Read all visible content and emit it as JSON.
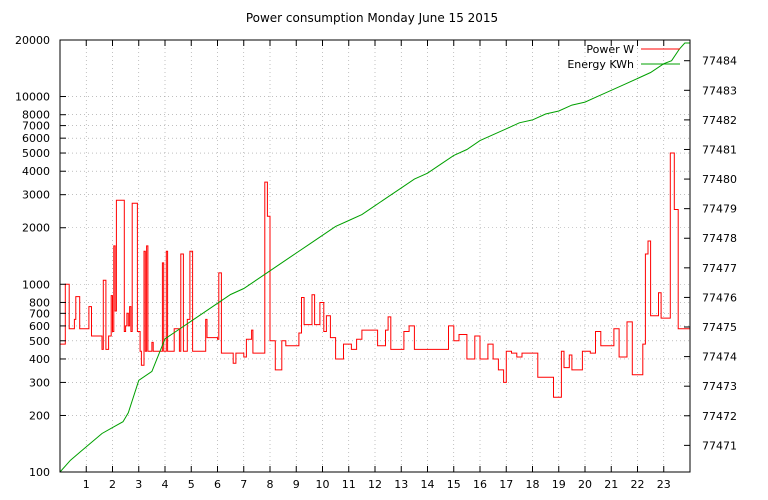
{
  "chart_data": {
    "type": "line",
    "title": "Power consumption Monday June 15 2015",
    "xlabel": "",
    "ylabel": "",
    "xlim": [
      0,
      24
    ],
    "x_ticks": [
      1,
      2,
      3,
      4,
      5,
      6,
      7,
      8,
      9,
      10,
      11,
      12,
      13,
      14,
      15,
      16,
      17,
      18,
      19,
      20,
      21,
      22,
      23
    ],
    "y_left": {
      "scale": "log",
      "range": [
        100,
        20000
      ],
      "ticks": [
        100,
        200,
        300,
        400,
        500,
        600,
        700,
        800,
        1000,
        2000,
        3000,
        4000,
        5000,
        6000,
        7000,
        8000,
        10000,
        20000
      ]
    },
    "y_right": {
      "scale": "linear",
      "range": [
        77470.1,
        77484.7
      ],
      "ticks": [
        77471,
        77472,
        77473,
        77474,
        77475,
        77476,
        77477,
        77478,
        77479,
        77480,
        77481,
        77482,
        77483,
        77484
      ]
    },
    "grid": true,
    "legend_position": "top-right",
    "series": [
      {
        "name": "Power W",
        "axis": "left",
        "color": "#ff0000",
        "points": [
          [
            0.0,
            480
          ],
          [
            0.2,
            1000
          ],
          [
            0.35,
            580
          ],
          [
            0.55,
            650
          ],
          [
            0.6,
            860
          ],
          [
            0.75,
            580
          ],
          [
            1.0,
            580
          ],
          [
            1.1,
            760
          ],
          [
            1.2,
            530
          ],
          [
            1.45,
            530
          ],
          [
            1.6,
            450
          ],
          [
            1.65,
            1050
          ],
          [
            1.75,
            450
          ],
          [
            1.85,
            530
          ],
          [
            1.95,
            870
          ],
          [
            2.0,
            560
          ],
          [
            2.05,
            1600
          ],
          [
            2.1,
            720
          ],
          [
            2.15,
            2800
          ],
          [
            2.3,
            2800
          ],
          [
            2.45,
            560
          ],
          [
            2.5,
            600
          ],
          [
            2.55,
            700
          ],
          [
            2.6,
            600
          ],
          [
            2.65,
            760
          ],
          [
            2.7,
            560
          ],
          [
            2.75,
            2700
          ],
          [
            2.9,
            2700
          ],
          [
            2.95,
            560
          ],
          [
            3.05,
            440
          ],
          [
            3.1,
            370
          ],
          [
            3.2,
            1500
          ],
          [
            3.25,
            440
          ],
          [
            3.3,
            1600
          ],
          [
            3.35,
            440
          ],
          [
            3.5,
            490
          ],
          [
            3.55,
            440
          ],
          [
            3.85,
            440
          ],
          [
            3.9,
            1300
          ],
          [
            3.95,
            440
          ],
          [
            4.05,
            1500
          ],
          [
            4.1,
            440
          ],
          [
            4.3,
            440
          ],
          [
            4.35,
            580
          ],
          [
            4.55,
            440
          ],
          [
            4.6,
            1450
          ],
          [
            4.7,
            440
          ],
          [
            4.85,
            650
          ],
          [
            4.95,
            1500
          ],
          [
            5.05,
            440
          ],
          [
            5.3,
            440
          ],
          [
            5.5,
            440
          ],
          [
            5.55,
            650
          ],
          [
            5.6,
            520
          ],
          [
            5.9,
            520
          ],
          [
            6.0,
            510
          ],
          [
            6.05,
            1150
          ],
          [
            6.15,
            430
          ],
          [
            6.5,
            430
          ],
          [
            6.6,
            380
          ],
          [
            6.7,
            430
          ],
          [
            6.9,
            430
          ],
          [
            7.0,
            410
          ],
          [
            7.1,
            510
          ],
          [
            7.3,
            570
          ],
          [
            7.35,
            430
          ],
          [
            7.7,
            430
          ],
          [
            7.8,
            3500
          ],
          [
            7.9,
            2300
          ],
          [
            8.0,
            500
          ],
          [
            8.1,
            500
          ],
          [
            8.2,
            350
          ],
          [
            8.4,
            350
          ],
          [
            8.45,
            500
          ],
          [
            8.6,
            470
          ],
          [
            8.8,
            470
          ],
          [
            9.0,
            470
          ],
          [
            9.1,
            550
          ],
          [
            9.2,
            850
          ],
          [
            9.3,
            610
          ],
          [
            9.5,
            610
          ],
          [
            9.6,
            880
          ],
          [
            9.7,
            610
          ],
          [
            9.9,
            800
          ],
          [
            10.0,
            800
          ],
          [
            10.05,
            560
          ],
          [
            10.15,
            680
          ],
          [
            10.3,
            520
          ],
          [
            10.5,
            400
          ],
          [
            10.7,
            400
          ],
          [
            10.8,
            480
          ],
          [
            11.0,
            480
          ],
          [
            11.1,
            450
          ],
          [
            11.3,
            510
          ],
          [
            11.5,
            570
          ],
          [
            11.8,
            570
          ],
          [
            12.0,
            570
          ],
          [
            12.1,
            470
          ],
          [
            12.3,
            470
          ],
          [
            12.4,
            570
          ],
          [
            12.5,
            670
          ],
          [
            12.6,
            450
          ],
          [
            12.9,
            450
          ],
          [
            13.0,
            450
          ],
          [
            13.1,
            560
          ],
          [
            13.3,
            600
          ],
          [
            13.5,
            450
          ],
          [
            14.0,
            450
          ],
          [
            14.5,
            450
          ],
          [
            14.7,
            450
          ],
          [
            14.8,
            600
          ],
          [
            15.0,
            500
          ],
          [
            15.1,
            500
          ],
          [
            15.2,
            540
          ],
          [
            15.5,
            400
          ],
          [
            15.7,
            400
          ],
          [
            15.8,
            530
          ],
          [
            16.0,
            400
          ],
          [
            16.1,
            400
          ],
          [
            16.3,
            480
          ],
          [
            16.5,
            400
          ],
          [
            16.7,
            350
          ],
          [
            16.9,
            300
          ],
          [
            17.0,
            440
          ],
          [
            17.2,
            430
          ],
          [
            17.4,
            410
          ],
          [
            17.6,
            430
          ],
          [
            18.0,
            430
          ],
          [
            18.2,
            320
          ],
          [
            18.6,
            320
          ],
          [
            18.8,
            250
          ],
          [
            19.0,
            250
          ],
          [
            19.1,
            440
          ],
          [
            19.2,
            360
          ],
          [
            19.4,
            420
          ],
          [
            19.5,
            350
          ],
          [
            19.7,
            350
          ],
          [
            19.9,
            440
          ],
          [
            20.0,
            440
          ],
          [
            20.2,
            430
          ],
          [
            20.4,
            560
          ],
          [
            20.6,
            470
          ],
          [
            20.9,
            470
          ],
          [
            21.0,
            470
          ],
          [
            21.1,
            580
          ],
          [
            21.3,
            410
          ],
          [
            21.5,
            410
          ],
          [
            21.6,
            630
          ],
          [
            21.8,
            330
          ],
          [
            22.0,
            330
          ],
          [
            22.1,
            330
          ],
          [
            22.2,
            480
          ],
          [
            22.3,
            1450
          ],
          [
            22.4,
            1700
          ],
          [
            22.5,
            680
          ],
          [
            22.7,
            680
          ],
          [
            22.8,
            900
          ],
          [
            22.9,
            660
          ],
          [
            23.1,
            660
          ],
          [
            23.25,
            5000
          ],
          [
            23.4,
            2500
          ],
          [
            23.55,
            580
          ],
          [
            24.0,
            580
          ]
        ]
      },
      {
        "name": "Energy KWh",
        "axis": "right",
        "color": "#00a000",
        "points": [
          [
            0.0,
            77470.1
          ],
          [
            0.4,
            77470.5
          ],
          [
            0.8,
            77470.8
          ],
          [
            1.2,
            77471.1
          ],
          [
            1.6,
            77471.4
          ],
          [
            2.0,
            77471.6
          ],
          [
            2.4,
            77471.8
          ],
          [
            2.6,
            77472.1
          ],
          [
            3.0,
            77473.2
          ],
          [
            3.5,
            77473.5
          ],
          [
            4.0,
            77474.6
          ],
          [
            4.5,
            77474.9
          ],
          [
            5.0,
            77475.2
          ],
          [
            5.5,
            77475.5
          ],
          [
            6.0,
            77475.8
          ],
          [
            6.5,
            77476.1
          ],
          [
            7.0,
            77476.3
          ],
          [
            7.5,
            77476.6
          ],
          [
            8.0,
            77476.9
          ],
          [
            8.5,
            77477.2
          ],
          [
            9.0,
            77477.5
          ],
          [
            9.5,
            77477.8
          ],
          [
            10.0,
            77478.1
          ],
          [
            10.5,
            77478.4
          ],
          [
            11.0,
            77478.6
          ],
          [
            11.5,
            77478.8
          ],
          [
            12.0,
            77479.1
          ],
          [
            12.5,
            77479.4
          ],
          [
            13.0,
            77479.7
          ],
          [
            13.5,
            77480.0
          ],
          [
            14.0,
            77480.2
          ],
          [
            14.5,
            77480.5
          ],
          [
            15.0,
            77480.8
          ],
          [
            15.5,
            77481.0
          ],
          [
            16.0,
            77481.3
          ],
          [
            16.5,
            77481.5
          ],
          [
            17.0,
            77481.7
          ],
          [
            17.5,
            77481.9
          ],
          [
            18.0,
            77482.0
          ],
          [
            18.5,
            77482.2
          ],
          [
            19.0,
            77482.3
          ],
          [
            19.5,
            77482.5
          ],
          [
            20.0,
            77482.6
          ],
          [
            20.5,
            77482.8
          ],
          [
            21.0,
            77483.0
          ],
          [
            21.5,
            77483.2
          ],
          [
            22.0,
            77483.4
          ],
          [
            22.5,
            77483.6
          ],
          [
            23.0,
            77483.9
          ],
          [
            23.3,
            77484.0
          ],
          [
            23.6,
            77484.4
          ],
          [
            23.8,
            77484.6
          ],
          [
            24.0,
            77484.6
          ]
        ]
      }
    ]
  }
}
